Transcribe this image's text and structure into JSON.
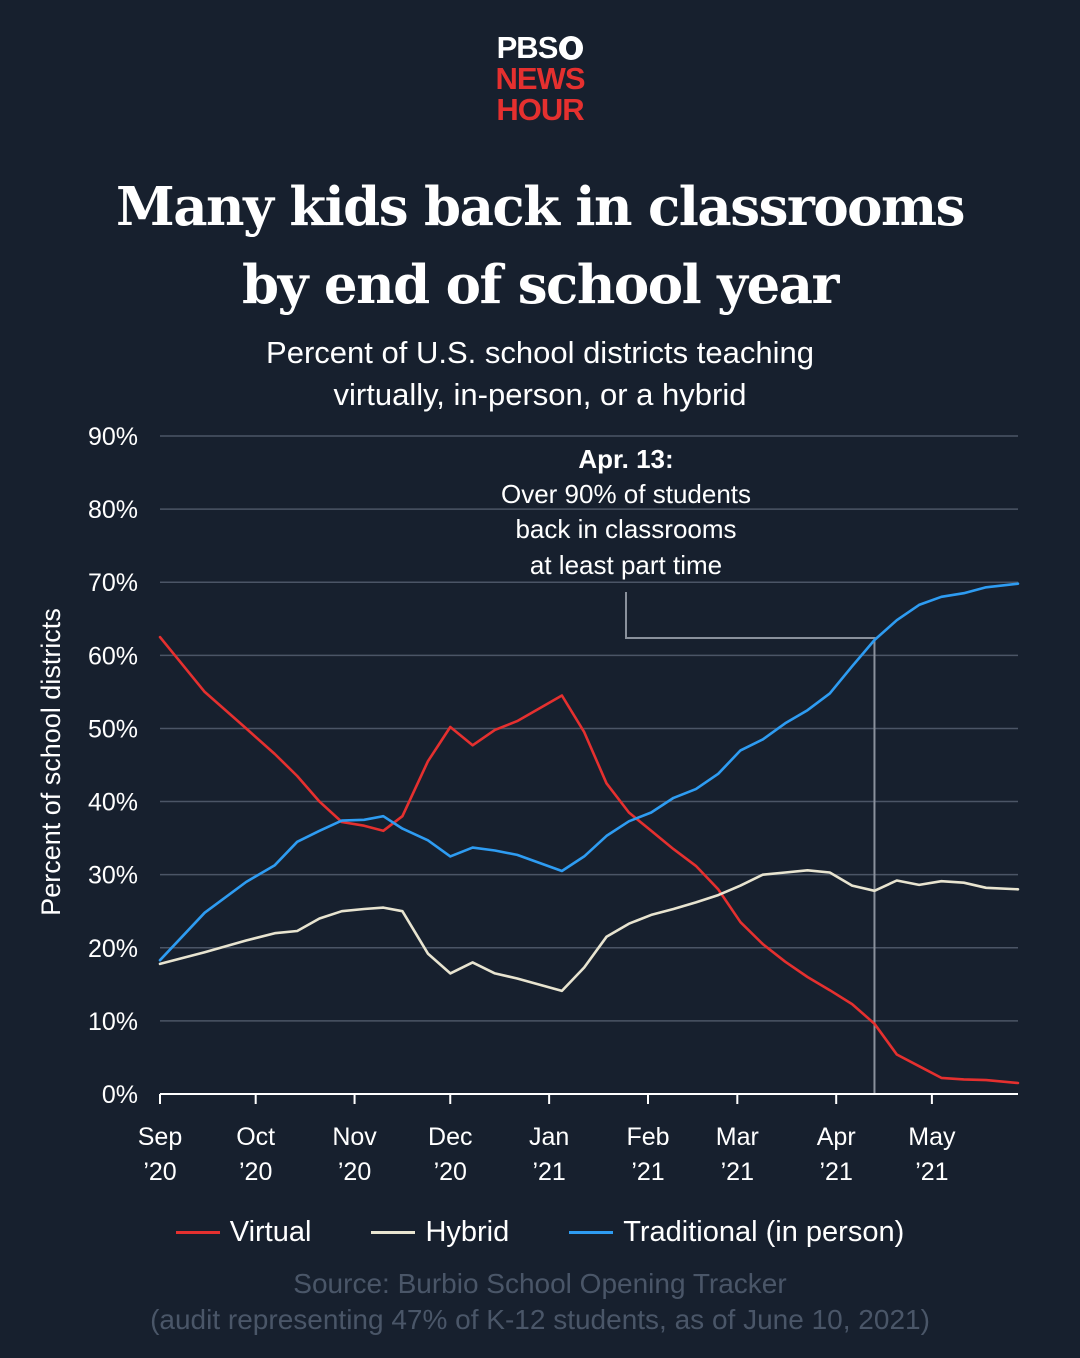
{
  "logo": {
    "line1": "PBS",
    "line2": "NEWS",
    "line3": "HOUR"
  },
  "title": {
    "line1": "Many kids back in classrooms",
    "line2": "by end of school year"
  },
  "subtitle": {
    "line1": "Percent of U.S. school districts teaching",
    "line2": "virtually, in-person, or a hybrid"
  },
  "annotation": {
    "heading": "Apr. 13:",
    "line1": "Over 90% of students",
    "line2": "back in classrooms",
    "line3": "at least part time",
    "date": "2021-04-13"
  },
  "source": {
    "line1": "Source: Burbio School Opening Tracker",
    "line2": "(audit representing 47% of K-12 students, as of June 10, 2021)"
  },
  "colors": {
    "background": "#17202e",
    "virtual": "#e5302f",
    "hybrid": "#e8e4d0",
    "traditional": "#2e9cf2",
    "grid": "#4b5566",
    "annotation_line": "#8a919c",
    "source_text": "#4a5668"
  },
  "chart_data": {
    "type": "line",
    "title": "Many kids back in classrooms by end of school year",
    "subtitle": "Percent of U.S. school districts teaching virtually, in-person, or a hybrid",
    "xlabel": "",
    "ylabel": "Percent of school districts",
    "ylim": [
      0,
      90
    ],
    "yticks": [
      0,
      10,
      20,
      30,
      40,
      50,
      60,
      70,
      80,
      90
    ],
    "ytick_labels": [
      "0%",
      "10%",
      "20%",
      "30%",
      "40%",
      "50%",
      "60%",
      "70%",
      "80%",
      "90%"
    ],
    "xlim": [
      "2020-09-01",
      "2021-05-28"
    ],
    "xticks": [
      {
        "date": "2020-09-01",
        "month": "Sep",
        "year": "’20"
      },
      {
        "date": "2020-10-01",
        "month": "Oct",
        "year": "’20"
      },
      {
        "date": "2020-11-01",
        "month": "Nov",
        "year": "’20"
      },
      {
        "date": "2020-12-01",
        "month": "Dec",
        "year": "’20"
      },
      {
        "date": "2021-01-01",
        "month": "Jan",
        "year": "’21"
      },
      {
        "date": "2021-02-01",
        "month": "Feb",
        "year": "’21"
      },
      {
        "date": "2021-03-01",
        "month": "Mar",
        "year": "’21"
      },
      {
        "date": "2021-04-01",
        "month": "Apr",
        "year": "’21"
      },
      {
        "date": "2021-05-01",
        "month": "May",
        "year": "’21"
      }
    ],
    "grid": true,
    "legend": "bottom",
    "series": [
      {
        "name": "Virtual",
        "color": "#e5302f",
        "points": [
          [
            "2020-09-01",
            62.5
          ],
          [
            "2020-09-15",
            55
          ],
          [
            "2020-09-28",
            50
          ],
          [
            "2020-10-07",
            46.5
          ],
          [
            "2020-10-14",
            43.5
          ],
          [
            "2020-10-21",
            40
          ],
          [
            "2020-10-28",
            37.2
          ],
          [
            "2020-11-04",
            36.7
          ],
          [
            "2020-11-10",
            36
          ],
          [
            "2020-11-16",
            38
          ],
          [
            "2020-11-24",
            45.5
          ],
          [
            "2020-12-01",
            50.2
          ],
          [
            "2020-12-08",
            47.7
          ],
          [
            "2020-12-15",
            49.8
          ],
          [
            "2020-12-22",
            51
          ],
          [
            "2021-01-05",
            54.5
          ],
          [
            "2021-01-12",
            49.5
          ],
          [
            "2021-01-19",
            42.5
          ],
          [
            "2021-01-26",
            38.5
          ],
          [
            "2021-02-02",
            36
          ],
          [
            "2021-02-09",
            33.5
          ],
          [
            "2021-02-16",
            31.2
          ],
          [
            "2021-02-23",
            28
          ],
          [
            "2021-03-02",
            23.5
          ],
          [
            "2021-03-09",
            20.5
          ],
          [
            "2021-03-16",
            18.1
          ],
          [
            "2021-03-23",
            16
          ],
          [
            "2021-03-30",
            14.2
          ],
          [
            "2021-04-06",
            12.3
          ],
          [
            "2021-04-13",
            9.6
          ],
          [
            "2021-04-20",
            5.4
          ],
          [
            "2021-04-27",
            3.8
          ],
          [
            "2021-05-04",
            2.2
          ],
          [
            "2021-05-11",
            2.0
          ],
          [
            "2021-05-18",
            1.9
          ],
          [
            "2021-05-28",
            1.5
          ]
        ]
      },
      {
        "name": "Hybrid",
        "color": "#e8e4d0",
        "points": [
          [
            "2020-09-01",
            17.8
          ],
          [
            "2020-09-15",
            19.4
          ],
          [
            "2020-09-28",
            21
          ],
          [
            "2020-10-07",
            22
          ],
          [
            "2020-10-14",
            22.3
          ],
          [
            "2020-10-21",
            24
          ],
          [
            "2020-10-28",
            25
          ],
          [
            "2020-11-04",
            25.3
          ],
          [
            "2020-11-10",
            25.5
          ],
          [
            "2020-11-16",
            25
          ],
          [
            "2020-11-24",
            19.2
          ],
          [
            "2020-12-01",
            16.5
          ],
          [
            "2020-12-08",
            18
          ],
          [
            "2020-12-15",
            16.5
          ],
          [
            "2020-12-22",
            15.8
          ],
          [
            "2021-01-05",
            14.1
          ],
          [
            "2021-01-12",
            17.3
          ],
          [
            "2021-01-19",
            21.5
          ],
          [
            "2021-01-26",
            23.3
          ],
          [
            "2021-02-02",
            24.5
          ],
          [
            "2021-02-09",
            25.3
          ],
          [
            "2021-02-16",
            26.2
          ],
          [
            "2021-02-23",
            27.2
          ],
          [
            "2021-03-02",
            28.5
          ],
          [
            "2021-03-09",
            30
          ],
          [
            "2021-03-16",
            30.3
          ],
          [
            "2021-03-23",
            30.6
          ],
          [
            "2021-03-30",
            30.3
          ],
          [
            "2021-04-06",
            28.5
          ],
          [
            "2021-04-13",
            27.8
          ],
          [
            "2021-04-20",
            29.2
          ],
          [
            "2021-04-27",
            28.6
          ],
          [
            "2021-05-04",
            29.1
          ],
          [
            "2021-05-11",
            28.9
          ],
          [
            "2021-05-18",
            28.2
          ],
          [
            "2021-05-28",
            28
          ]
        ]
      },
      {
        "name": "Traditional (in person)",
        "color": "#2e9cf2",
        "points": [
          [
            "2020-09-01",
            18.3
          ],
          [
            "2020-09-15",
            24.8
          ],
          [
            "2020-09-28",
            29
          ],
          [
            "2020-10-07",
            31.3
          ],
          [
            "2020-10-14",
            34.5
          ],
          [
            "2020-10-21",
            36
          ],
          [
            "2020-10-28",
            37.4
          ],
          [
            "2020-11-04",
            37.5
          ],
          [
            "2020-11-10",
            38
          ],
          [
            "2020-11-16",
            36.3
          ],
          [
            "2020-11-24",
            34.7
          ],
          [
            "2020-12-01",
            32.5
          ],
          [
            "2020-12-08",
            33.7
          ],
          [
            "2020-12-15",
            33.3
          ],
          [
            "2020-12-22",
            32.7
          ],
          [
            "2021-01-05",
            30.5
          ],
          [
            "2021-01-12",
            32.5
          ],
          [
            "2021-01-19",
            35.3
          ],
          [
            "2021-01-26",
            37.3
          ],
          [
            "2021-02-02",
            38.5
          ],
          [
            "2021-02-09",
            40.5
          ],
          [
            "2021-02-16",
            41.7
          ],
          [
            "2021-02-23",
            43.8
          ],
          [
            "2021-03-02",
            47
          ],
          [
            "2021-03-09",
            48.5
          ],
          [
            "2021-03-16",
            50.7
          ],
          [
            "2021-03-23",
            52.5
          ],
          [
            "2021-03-30",
            54.8
          ],
          [
            "2021-04-06",
            58.5
          ],
          [
            "2021-04-13",
            62.1
          ],
          [
            "2021-04-20",
            64.8
          ],
          [
            "2021-04-27",
            66.9
          ],
          [
            "2021-05-04",
            68
          ],
          [
            "2021-05-11",
            68.5
          ],
          [
            "2021-05-18",
            69.3
          ],
          [
            "2021-05-28",
            69.8
          ]
        ]
      }
    ]
  }
}
